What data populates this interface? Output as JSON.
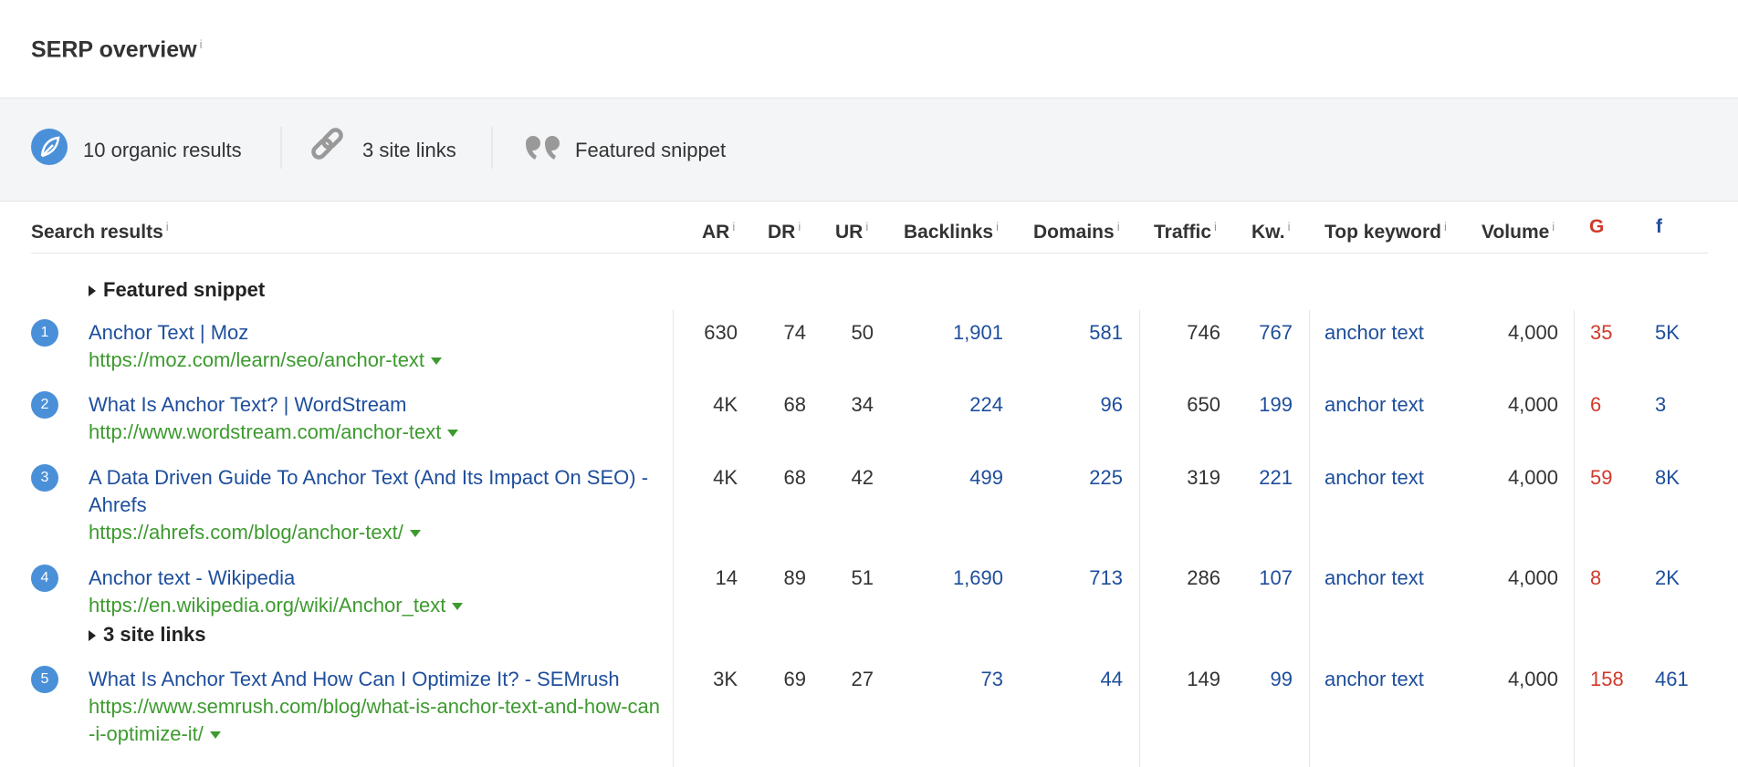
{
  "header": {
    "title": "SERP overview"
  },
  "info_icon": "i",
  "summary": [
    "10 organic results",
    "3 site links",
    "Featured snippet"
  ],
  "table": {
    "columns": [
      "Search results",
      "AR",
      "DR",
      "UR",
      "Backlinks",
      "Domains",
      "Traffic",
      "Kw.",
      "Top keyword",
      "Volume",
      "G",
      "f"
    ],
    "featured_label": "Featured snippet",
    "rows": [
      {
        "rank": "1",
        "title": "Anchor Text | Moz",
        "url": "https://moz.com/learn/seo/anchor-text",
        "cells": [
          "630",
          "74",
          "50",
          "1,901",
          "581",
          "746",
          "767",
          "anchor text",
          "4,000",
          "35",
          "5K"
        ]
      },
      {
        "rank": "2",
        "title": "What Is Anchor Text? | WordStream",
        "url": "http://www.wordstream.com/anchor-text",
        "cells": [
          "4K",
          "68",
          "34",
          "224",
          "96",
          "650",
          "199",
          "anchor text",
          "4,000",
          "6",
          "3"
        ]
      },
      {
        "rank": "3",
        "title": "A Data Driven Guide To Anchor Text (And Its Impact On SEO) - Ahrefs",
        "url": "https://ahrefs.com/blog/anchor-text/",
        "cells": [
          "4K",
          "68",
          "42",
          "499",
          "225",
          "319",
          "221",
          "anchor text",
          "4,000",
          "59",
          "8K"
        ]
      },
      {
        "rank": "4",
        "title": "Anchor text - Wikipedia",
        "url": "https://en.wikipedia.org/wiki/Anchor_text",
        "cells": [
          "14",
          "89",
          "51",
          "1,690",
          "713",
          "286",
          "107",
          "anchor text",
          "4,000",
          "8",
          "2K"
        ],
        "site_links": "3 site links"
      },
      {
        "rank": "5",
        "title": "What Is Anchor Text And How Can I Optimize It? - SEMrush",
        "url": "https://www.semrush.com/blog/what-is-anchor-text-and-how-can-i-optimize-it/",
        "cells": [
          "3K",
          "69",
          "27",
          "73",
          "44",
          "149",
          "99",
          "anchor text",
          "4,000",
          "158",
          "461"
        ]
      }
    ]
  }
}
